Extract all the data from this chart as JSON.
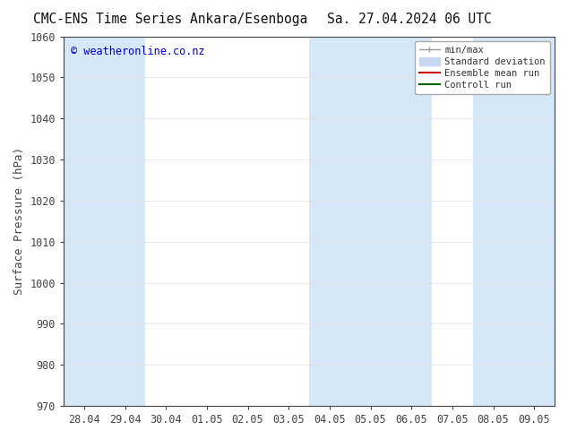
{
  "title_left": "CMC-ENS Time Series Ankara/Esenboga",
  "title_right": "Sa. 27.04.2024 06 UTC",
  "ylabel": "Surface Pressure (hPa)",
  "ylim": [
    970,
    1060
  ],
  "yticks": [
    970,
    980,
    990,
    1000,
    1010,
    1020,
    1030,
    1040,
    1050,
    1060
  ],
  "xtick_labels": [
    "28.04",
    "29.04",
    "30.04",
    "01.05",
    "02.05",
    "03.05",
    "04.05",
    "05.05",
    "06.05",
    "07.05",
    "08.05",
    "09.05"
  ],
  "watermark": "© weatheronline.co.nz",
  "watermark_color": "#0000cc",
  "bg_color": "#ffffff",
  "plot_bg_color": "#ffffff",
  "shaded_indices": [
    0,
    1,
    6,
    7,
    8,
    10,
    11
  ],
  "shaded_color": "#d6e8f7",
  "spine_color": "#444444",
  "tick_color": "#444444",
  "title_fontsize": 10.5,
  "label_fontsize": 9,
  "tick_fontsize": 8.5,
  "legend_minmax_color": "#999999",
  "legend_std_color": "#c8d8f0",
  "legend_ens_color": "#cc0000",
  "legend_ctrl_color": "#006600"
}
